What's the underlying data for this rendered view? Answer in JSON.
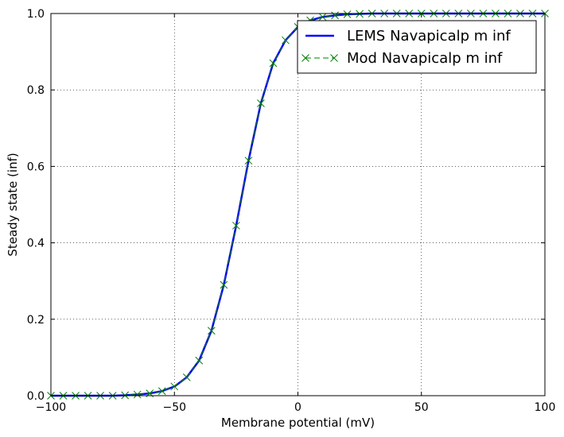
{
  "chart_data": {
    "type": "line",
    "title": "",
    "xlabel": "Membrane potential (mV)",
    "ylabel": "Steady state (inf)",
    "xlim": [
      -100,
      100
    ],
    "ylim": [
      0.0,
      1.0
    ],
    "grid": true,
    "legend_position": "top-right",
    "x_ticks": [
      -100,
      -50,
      0,
      50,
      100
    ],
    "x_tick_labels": [
      "−100",
      "−50",
      "0",
      "50",
      "100"
    ],
    "y_ticks": [
      0.0,
      0.2,
      0.4,
      0.6,
      0.8,
      1.0
    ],
    "y_tick_labels": [
      "0.0",
      "0.2",
      "0.4",
      "0.6",
      "0.8",
      "1.0"
    ],
    "series": [
      {
        "name": "LEMS Navapicalp m inf",
        "style": "solid-line",
        "color": "#0000ff",
        "x": [
          -100,
          -95,
          -90,
          -85,
          -80,
          -75,
          -70,
          -65,
          -60,
          -55,
          -50,
          -45,
          -40,
          -35,
          -30,
          -25,
          -20,
          -15,
          -10,
          -5,
          0,
          5,
          10,
          15,
          20,
          25,
          30,
          35,
          40,
          45,
          50,
          55,
          60,
          65,
          70,
          75,
          80,
          85,
          90,
          95,
          100
        ],
        "y": [
          0.0,
          0.0,
          0.0,
          0.0,
          0.0,
          0.0,
          0.001,
          0.003,
          0.006,
          0.012,
          0.024,
          0.048,
          0.092,
          0.17,
          0.29,
          0.445,
          0.615,
          0.765,
          0.87,
          0.93,
          0.965,
          0.982,
          0.991,
          0.995,
          0.998,
          0.999,
          1.0,
          1.0,
          1.0,
          1.0,
          1.0,
          1.0,
          1.0,
          1.0,
          1.0,
          1.0,
          1.0,
          1.0,
          1.0,
          1.0,
          1.0
        ]
      },
      {
        "name": "Mod Navapicalp m inf",
        "style": "dashed-x-markers",
        "color": "#008000",
        "x": [
          -100,
          -95,
          -90,
          -85,
          -80,
          -75,
          -70,
          -65,
          -60,
          -55,
          -50,
          -45,
          -40,
          -35,
          -30,
          -25,
          -20,
          -15,
          -10,
          -5,
          0,
          5,
          10,
          15,
          20,
          25,
          30,
          35,
          40,
          45,
          50,
          55,
          60,
          65,
          70,
          75,
          80,
          85,
          90,
          95,
          100
        ],
        "y": [
          0.0,
          0.0,
          0.0,
          0.0,
          0.0,
          0.0,
          0.001,
          0.003,
          0.006,
          0.012,
          0.024,
          0.048,
          0.092,
          0.17,
          0.29,
          0.445,
          0.615,
          0.765,
          0.87,
          0.93,
          0.965,
          0.982,
          0.991,
          0.995,
          0.998,
          0.999,
          1.0,
          1.0,
          1.0,
          1.0,
          1.0,
          1.0,
          1.0,
          1.0,
          1.0,
          1.0,
          1.0,
          1.0,
          1.0,
          1.0,
          1.0
        ]
      }
    ]
  }
}
